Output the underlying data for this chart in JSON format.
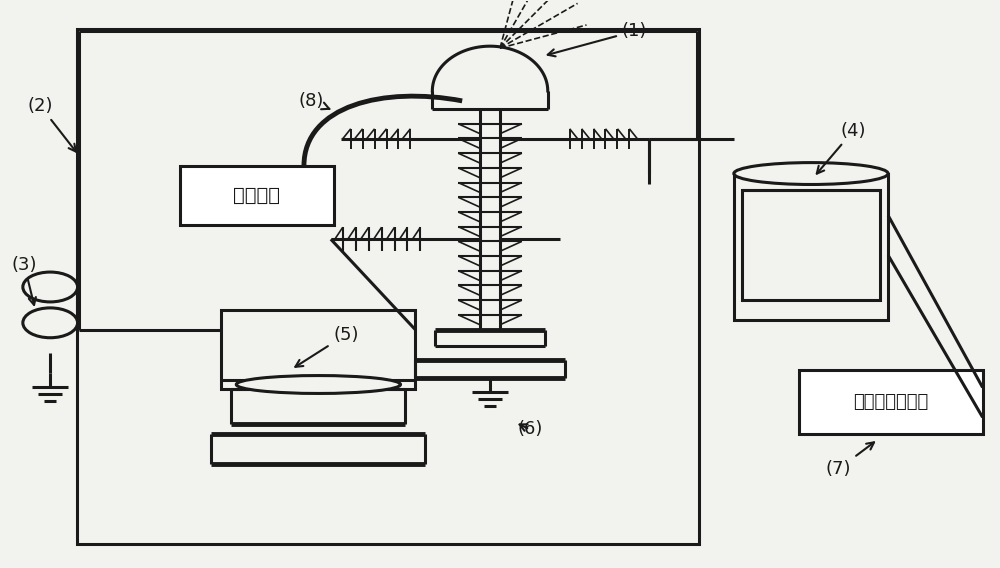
{
  "bg_color": "#f2f2ee",
  "line_color": "#1a1a1a",
  "box_fill": "#ffffff",
  "label_1": "(1)",
  "label_2": "(2)",
  "label_3": "(3)",
  "label_4": "(4)",
  "label_5": "(5)",
  "label_6": "(6)",
  "label_7": "(7)",
  "label_8": "(8)",
  "text_container": "盛水容器",
  "text_monitor": "光纤衰减监测仪",
  "fig_width": 10.0,
  "fig_height": 5.68
}
